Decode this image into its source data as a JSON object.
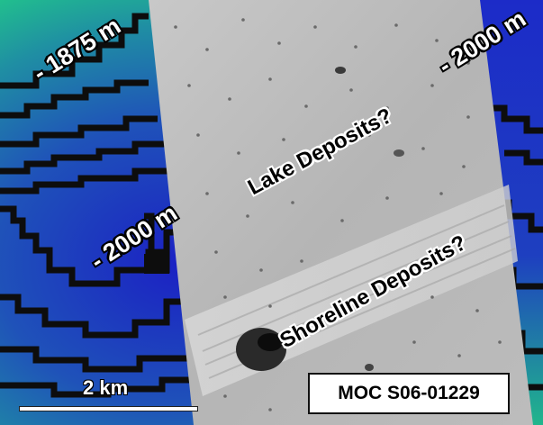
{
  "map": {
    "contour_labels": {
      "top_left": "- 1875 m",
      "top_right": "- 2000 m",
      "center_left": "- 2000 m"
    },
    "feature_labels": {
      "lake": "Lake Deposits?",
      "shoreline": "Shoreline Deposits?"
    },
    "scale_bar": {
      "label": "2 km"
    },
    "image_id": "MOC S06-01229",
    "colors": {
      "low_elevation": "#1b21c4",
      "high_elevation": "#22cf86",
      "contour_line": "#0d0d0d",
      "image_gray": "#b8b8b8"
    }
  }
}
